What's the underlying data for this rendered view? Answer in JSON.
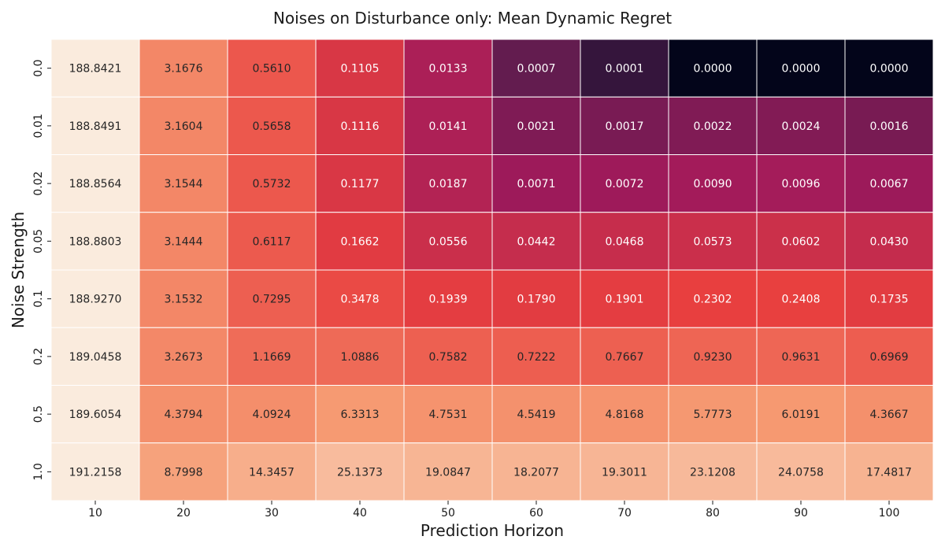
{
  "chart_data": {
    "type": "heatmap",
    "title": "Noises on Disturbance only: Mean Dynamic Regret",
    "xlabel": "Prediction Horizon",
    "ylabel": "Noise Strength",
    "x_categories": [
      "10",
      "20",
      "30",
      "40",
      "50",
      "60",
      "70",
      "80",
      "90",
      "100"
    ],
    "y_categories": [
      "0.0",
      "0.01",
      "0.02",
      "0.05",
      "0.1",
      "0.2",
      "0.5",
      "1.0"
    ],
    "cell_labels": [
      [
        "188.8421",
        "3.1676",
        "0.5610",
        "0.1105",
        "0.0133",
        "0.0007",
        "0.0001",
        "0.0000",
        "0.0000",
        "0.0000"
      ],
      [
        "188.8491",
        "3.1604",
        "0.5658",
        "0.1116",
        "0.0141",
        "0.0021",
        "0.0017",
        "0.0022",
        "0.0024",
        "0.0016"
      ],
      [
        "188.8564",
        "3.1544",
        "0.5732",
        "0.1177",
        "0.0187",
        "0.0071",
        "0.0072",
        "0.0090",
        "0.0096",
        "0.0067"
      ],
      [
        "188.8803",
        "3.1444",
        "0.6117",
        "0.1662",
        "0.0556",
        "0.0442",
        "0.0468",
        "0.0573",
        "0.0602",
        "0.0430"
      ],
      [
        "188.9270",
        "3.1532",
        "0.7295",
        "0.3478",
        "0.1939",
        "0.1790",
        "0.1901",
        "0.2302",
        "0.2408",
        "0.1735"
      ],
      [
        "189.0458",
        "3.2673",
        "1.1669",
        "1.0886",
        "0.7582",
        "0.7222",
        "0.7667",
        "0.9230",
        "0.9631",
        "0.6969"
      ],
      [
        "189.6054",
        "4.3794",
        "4.0924",
        "6.3313",
        "4.7531",
        "4.5419",
        "4.8168",
        "5.7773",
        "6.0191",
        "4.3667"
      ],
      [
        "191.2158",
        "8.7998",
        "14.3457",
        "25.1373",
        "19.0847",
        "18.2077",
        "19.3011",
        "23.1208",
        "24.0758",
        "17.4817"
      ]
    ],
    "color_scale": "log",
    "colormap_stops": [
      "#03051a",
      "#4c1d4b",
      "#a11a5b",
      "#e83f3f",
      "#f69c73",
      "#faebdd"
    ],
    "colorbar": false,
    "grid_lines_color": "#ffffff"
  }
}
